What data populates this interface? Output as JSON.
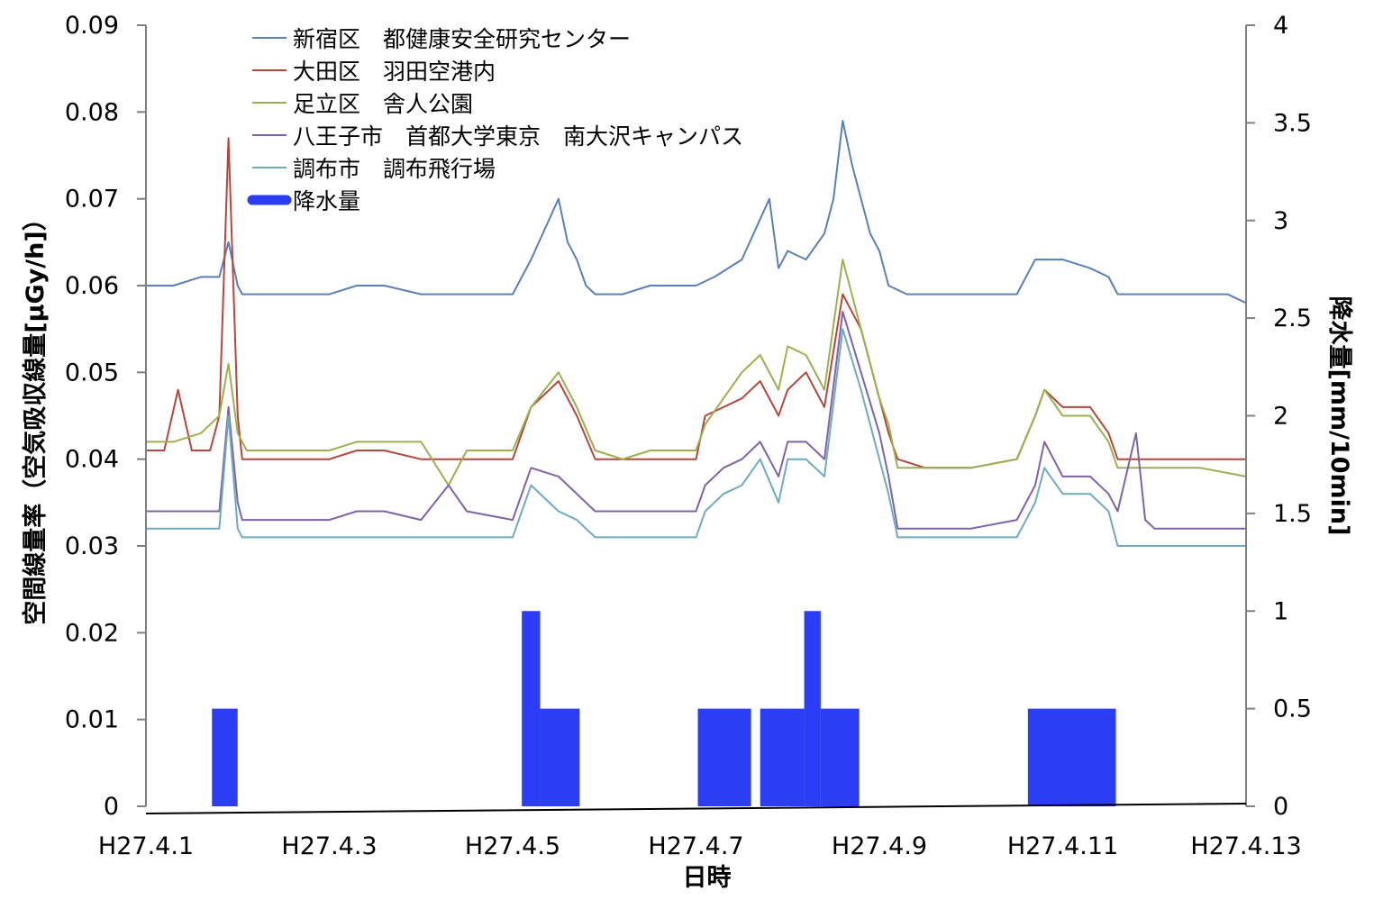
{
  "chart_data": {
    "type": "line",
    "title": "",
    "xlabel": "日時",
    "ylabel_left": "空間線量率（空気吸収線量[μGy/h]）",
    "ylabel_right": "降水量[mm/10min]",
    "x_tick_labels": [
      "H27.4.1",
      "H27.4.3",
      "H27.4.5",
      "H27.4.7",
      "H27.4.9",
      "H27.4.11",
      "H27.4.13"
    ],
    "x_range_days": [
      1,
      13
    ],
    "ylim_left": [
      0,
      0.09
    ],
    "yticks_left": [
      "0",
      "0.01",
      "0.02",
      "0.03",
      "0.04",
      "0.05",
      "0.06",
      "0.07",
      "0.08",
      "0.09"
    ],
    "ylim_right": [
      0,
      4
    ],
    "yticks_right": [
      "0",
      "0.5",
      "1",
      "1.5",
      "2",
      "2.5",
      "3",
      "3.5",
      "4"
    ],
    "grid": false,
    "legend_position": "top-left",
    "series": [
      {
        "name": "新宿区　都健康安全研究センター",
        "color": "#5b7fb8",
        "axis": "left",
        "points": [
          [
            1.0,
            0.06
          ],
          [
            1.3,
            0.06
          ],
          [
            1.6,
            0.061
          ],
          [
            1.8,
            0.061
          ],
          [
            1.9,
            0.065
          ],
          [
            2.0,
            0.06
          ],
          [
            2.05,
            0.059
          ],
          [
            2.5,
            0.059
          ],
          [
            3.0,
            0.059
          ],
          [
            3.3,
            0.06
          ],
          [
            3.6,
            0.06
          ],
          [
            4.0,
            0.059
          ],
          [
            4.5,
            0.059
          ],
          [
            5.0,
            0.059
          ],
          [
            5.2,
            0.063
          ],
          [
            5.5,
            0.07
          ],
          [
            5.6,
            0.065
          ],
          [
            5.7,
            0.063
          ],
          [
            5.8,
            0.06
          ],
          [
            5.9,
            0.059
          ],
          [
            6.2,
            0.059
          ],
          [
            6.5,
            0.06
          ],
          [
            6.8,
            0.06
          ],
          [
            7.0,
            0.06
          ],
          [
            7.2,
            0.061
          ],
          [
            7.5,
            0.063
          ],
          [
            7.8,
            0.07
          ],
          [
            7.9,
            0.062
          ],
          [
            8.0,
            0.064
          ],
          [
            8.2,
            0.063
          ],
          [
            8.4,
            0.066
          ],
          [
            8.5,
            0.07
          ],
          [
            8.6,
            0.079
          ],
          [
            8.7,
            0.074
          ],
          [
            8.9,
            0.066
          ],
          [
            9.0,
            0.064
          ],
          [
            9.1,
            0.06
          ],
          [
            9.3,
            0.059
          ],
          [
            9.6,
            0.059
          ],
          [
            10.0,
            0.059
          ],
          [
            10.5,
            0.059
          ],
          [
            10.7,
            0.063
          ],
          [
            11.0,
            0.063
          ],
          [
            11.3,
            0.062
          ],
          [
            11.5,
            0.061
          ],
          [
            11.6,
            0.059
          ],
          [
            12.0,
            0.059
          ],
          [
            12.5,
            0.059
          ],
          [
            12.8,
            0.059
          ],
          [
            13.0,
            0.058
          ]
        ]
      },
      {
        "name": "大田区　羽田空港内",
        "color": "#b3483f",
        "axis": "left",
        "points": [
          [
            1.0,
            0.041
          ],
          [
            1.2,
            0.041
          ],
          [
            1.35,
            0.048
          ],
          [
            1.5,
            0.041
          ],
          [
            1.7,
            0.041
          ],
          [
            1.8,
            0.045
          ],
          [
            1.9,
            0.077
          ],
          [
            2.0,
            0.045
          ],
          [
            2.05,
            0.04
          ],
          [
            2.5,
            0.04
          ],
          [
            3.0,
            0.04
          ],
          [
            3.3,
            0.041
          ],
          [
            3.6,
            0.041
          ],
          [
            4.0,
            0.04
          ],
          [
            4.2,
            0.04
          ],
          [
            4.5,
            0.04
          ],
          [
            4.8,
            0.04
          ],
          [
            5.0,
            0.04
          ],
          [
            5.2,
            0.046
          ],
          [
            5.5,
            0.049
          ],
          [
            5.7,
            0.045
          ],
          [
            5.9,
            0.04
          ],
          [
            6.2,
            0.04
          ],
          [
            6.5,
            0.04
          ],
          [
            6.8,
            0.04
          ],
          [
            7.0,
            0.04
          ],
          [
            7.1,
            0.045
          ],
          [
            7.3,
            0.046
          ],
          [
            7.5,
            0.047
          ],
          [
            7.7,
            0.049
          ],
          [
            7.9,
            0.045
          ],
          [
            8.0,
            0.048
          ],
          [
            8.2,
            0.05
          ],
          [
            8.4,
            0.046
          ],
          [
            8.6,
            0.059
          ],
          [
            8.8,
            0.055
          ],
          [
            9.0,
            0.047
          ],
          [
            9.1,
            0.043
          ],
          [
            9.2,
            0.04
          ],
          [
            9.5,
            0.039
          ],
          [
            10.0,
            0.039
          ],
          [
            10.5,
            0.04
          ],
          [
            10.7,
            0.045
          ],
          [
            10.8,
            0.048
          ],
          [
            11.0,
            0.046
          ],
          [
            11.3,
            0.046
          ],
          [
            11.5,
            0.043
          ],
          [
            11.6,
            0.04
          ],
          [
            12.0,
            0.04
          ],
          [
            12.5,
            0.04
          ],
          [
            13.0,
            0.04
          ]
        ]
      },
      {
        "name": "足立区　舎人公園",
        "color": "#9cb04f",
        "axis": "left",
        "points": [
          [
            1.0,
            0.042
          ],
          [
            1.3,
            0.042
          ],
          [
            1.6,
            0.043
          ],
          [
            1.8,
            0.045
          ],
          [
            1.9,
            0.051
          ],
          [
            2.0,
            0.043
          ],
          [
            2.1,
            0.041
          ],
          [
            2.5,
            0.041
          ],
          [
            3.0,
            0.041
          ],
          [
            3.3,
            0.042
          ],
          [
            3.6,
            0.042
          ],
          [
            4.0,
            0.042
          ],
          [
            4.3,
            0.037
          ],
          [
            4.5,
            0.041
          ],
          [
            5.0,
            0.041
          ],
          [
            5.2,
            0.046
          ],
          [
            5.5,
            0.05
          ],
          [
            5.7,
            0.046
          ],
          [
            5.9,
            0.041
          ],
          [
            6.2,
            0.04
          ],
          [
            6.5,
            0.041
          ],
          [
            6.8,
            0.041
          ],
          [
            7.0,
            0.041
          ],
          [
            7.1,
            0.044
          ],
          [
            7.3,
            0.047
          ],
          [
            7.5,
            0.05
          ],
          [
            7.7,
            0.052
          ],
          [
            7.9,
            0.048
          ],
          [
            8.0,
            0.053
          ],
          [
            8.2,
            0.052
          ],
          [
            8.4,
            0.048
          ],
          [
            8.6,
            0.063
          ],
          [
            8.8,
            0.055
          ],
          [
            9.0,
            0.047
          ],
          [
            9.1,
            0.044
          ],
          [
            9.2,
            0.039
          ],
          [
            9.5,
            0.039
          ],
          [
            10.0,
            0.039
          ],
          [
            10.5,
            0.04
          ],
          [
            10.7,
            0.045
          ],
          [
            10.8,
            0.048
          ],
          [
            11.0,
            0.045
          ],
          [
            11.3,
            0.045
          ],
          [
            11.5,
            0.042
          ],
          [
            11.6,
            0.039
          ],
          [
            12.0,
            0.039
          ],
          [
            12.5,
            0.039
          ],
          [
            13.0,
            0.038
          ]
        ]
      },
      {
        "name": "八王子市　首都大学東京　南大沢キャンパス",
        "color": "#7f63a8",
        "axis": "left",
        "points": [
          [
            1.0,
            0.034
          ],
          [
            1.3,
            0.034
          ],
          [
            1.6,
            0.034
          ],
          [
            1.8,
            0.034
          ],
          [
            1.9,
            0.046
          ],
          [
            2.0,
            0.035
          ],
          [
            2.05,
            0.033
          ],
          [
            2.5,
            0.033
          ],
          [
            3.0,
            0.033
          ],
          [
            3.3,
            0.034
          ],
          [
            3.6,
            0.034
          ],
          [
            4.0,
            0.033
          ],
          [
            4.3,
            0.037
          ],
          [
            4.5,
            0.034
          ],
          [
            5.0,
            0.033
          ],
          [
            5.2,
            0.039
          ],
          [
            5.5,
            0.038
          ],
          [
            5.7,
            0.036
          ],
          [
            5.9,
            0.034
          ],
          [
            6.2,
            0.034
          ],
          [
            6.5,
            0.034
          ],
          [
            6.8,
            0.034
          ],
          [
            7.0,
            0.034
          ],
          [
            7.1,
            0.037
          ],
          [
            7.3,
            0.039
          ],
          [
            7.5,
            0.04
          ],
          [
            7.7,
            0.042
          ],
          [
            7.9,
            0.038
          ],
          [
            8.0,
            0.042
          ],
          [
            8.2,
            0.042
          ],
          [
            8.4,
            0.04
          ],
          [
            8.6,
            0.057
          ],
          [
            8.8,
            0.05
          ],
          [
            9.0,
            0.043
          ],
          [
            9.1,
            0.038
          ],
          [
            9.2,
            0.032
          ],
          [
            9.5,
            0.032
          ],
          [
            10.0,
            0.032
          ],
          [
            10.5,
            0.033
          ],
          [
            10.7,
            0.037
          ],
          [
            10.8,
            0.042
          ],
          [
            11.0,
            0.038
          ],
          [
            11.3,
            0.038
          ],
          [
            11.5,
            0.036
          ],
          [
            11.6,
            0.034
          ],
          [
            11.8,
            0.043
          ],
          [
            11.9,
            0.033
          ],
          [
            12.0,
            0.032
          ],
          [
            12.5,
            0.032
          ],
          [
            13.0,
            0.032
          ]
        ]
      },
      {
        "name": "調布市　調布飛行場",
        "color": "#6fa9c2",
        "axis": "left",
        "points": [
          [
            1.0,
            0.032
          ],
          [
            1.3,
            0.032
          ],
          [
            1.6,
            0.032
          ],
          [
            1.8,
            0.032
          ],
          [
            1.9,
            0.045
          ],
          [
            2.0,
            0.032
          ],
          [
            2.05,
            0.031
          ],
          [
            2.5,
            0.031
          ],
          [
            3.0,
            0.031
          ],
          [
            3.3,
            0.031
          ],
          [
            3.6,
            0.031
          ],
          [
            4.0,
            0.031
          ],
          [
            4.5,
            0.031
          ],
          [
            5.0,
            0.031
          ],
          [
            5.2,
            0.037
          ],
          [
            5.5,
            0.034
          ],
          [
            5.7,
            0.033
          ],
          [
            5.9,
            0.031
          ],
          [
            6.2,
            0.031
          ],
          [
            6.5,
            0.031
          ],
          [
            6.8,
            0.031
          ],
          [
            7.0,
            0.031
          ],
          [
            7.1,
            0.034
          ],
          [
            7.3,
            0.036
          ],
          [
            7.5,
            0.037
          ],
          [
            7.7,
            0.04
          ],
          [
            7.9,
            0.035
          ],
          [
            8.0,
            0.04
          ],
          [
            8.2,
            0.04
          ],
          [
            8.4,
            0.038
          ],
          [
            8.6,
            0.055
          ],
          [
            8.8,
            0.048
          ],
          [
            9.0,
            0.04
          ],
          [
            9.1,
            0.036
          ],
          [
            9.2,
            0.031
          ],
          [
            9.5,
            0.031
          ],
          [
            10.0,
            0.031
          ],
          [
            10.5,
            0.031
          ],
          [
            10.7,
            0.035
          ],
          [
            10.8,
            0.039
          ],
          [
            11.0,
            0.036
          ],
          [
            11.3,
            0.036
          ],
          [
            11.5,
            0.034
          ],
          [
            11.6,
            0.03
          ],
          [
            12.0,
            0.03
          ],
          [
            12.5,
            0.03
          ],
          [
            13.0,
            0.03
          ]
        ]
      },
      {
        "name": "降水量",
        "color": "#2b3ef5",
        "axis": "right",
        "type": "bar",
        "blocks": [
          {
            "start": 1.72,
            "end": 2.0,
            "value": 0.5
          },
          {
            "start": 5.1,
            "end": 5.3,
            "value": 1.0
          },
          {
            "start": 5.3,
            "end": 5.73,
            "value": 0.5
          },
          {
            "start": 7.02,
            "end": 7.6,
            "value": 0.5
          },
          {
            "start": 7.7,
            "end": 8.18,
            "value": 0.5
          },
          {
            "start": 8.18,
            "end": 8.36,
            "value": 1.0
          },
          {
            "start": 8.36,
            "end": 8.78,
            "value": 0.5
          },
          {
            "start": 10.62,
            "end": 11.58,
            "value": 0.5
          }
        ]
      }
    ]
  }
}
